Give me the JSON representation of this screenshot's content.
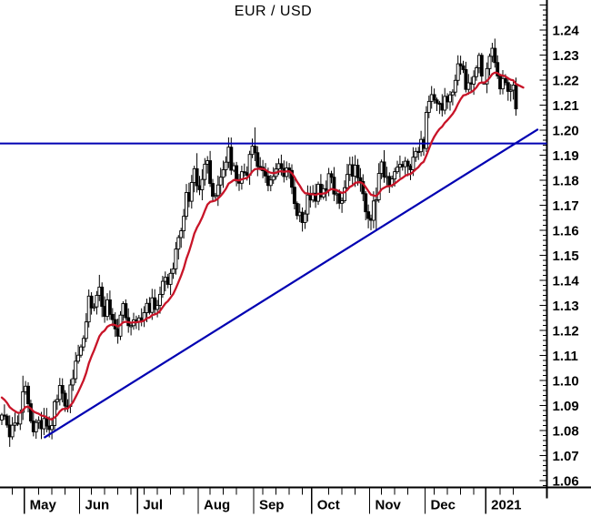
{
  "title": "EUR / USD",
  "chart_data": {
    "type": "candlestick",
    "title": "EUR / USD",
    "legend_position": "none",
    "grid": false,
    "x_axis": {
      "labels": [
        "May",
        "Jun",
        "Jul",
        "Aug",
        "Sep",
        "Oct",
        "Nov",
        "Dec",
        "2021"
      ],
      "month_start_bars": [
        9,
        30,
        52,
        75,
        96,
        118,
        140,
        161,
        184
      ],
      "minor_tick_every_bars": 5
    },
    "y_axis": {
      "labels": [
        "1.24",
        "1.23",
        "1.22",
        "1.21",
        "1.20",
        "1.19",
        "1.18",
        "1.17",
        "1.16",
        "1.15",
        "1.14",
        "1.13",
        "1.12",
        "1.11",
        "1.10",
        "1.09",
        "1.08",
        "1.07",
        "1.06"
      ],
      "major_step": 0.01,
      "minor_step": 0.002,
      "range_top": 1.252,
      "range_bottom": 1.057,
      "side": "right"
    },
    "closes": [
      1.0862,
      1.0858,
      1.0822,
      1.0775,
      1.0821,
      1.083,
      1.0826,
      1.0873,
      1.0955,
      1.0977,
      1.0907,
      1.0838,
      1.0795,
      1.0832,
      1.084,
      1.0807,
      1.0848,
      1.0818,
      1.0804,
      1.082,
      1.0915,
      1.0924,
      1.098,
      1.0949,
      1.0898,
      1.0896,
      1.0982,
      1.1007,
      1.1077,
      1.1101,
      1.1134,
      1.1168,
      1.1234,
      1.1337,
      1.129,
      1.1294,
      1.134,
      1.1373,
      1.1296,
      1.1256,
      1.1322,
      1.1264,
      1.1243,
      1.1206,
      1.1177,
      1.1261,
      1.1307,
      1.1251,
      1.1219,
      1.1219,
      1.1242,
      1.1234,
      1.125,
      1.124,
      1.1271,
      1.1308,
      1.1272,
      1.133,
      1.1284,
      1.13,
      1.1344,
      1.1396,
      1.1412,
      1.1384,
      1.1428,
      1.1446,
      1.1525,
      1.1571,
      1.1598,
      1.1656,
      1.1751,
      1.1716,
      1.1791,
      1.1846,
      1.1778,
      1.1762,
      1.1803,
      1.1864,
      1.1878,
      1.1787,
      1.1736,
      1.1739,
      1.1781,
      1.1812,
      1.1842,
      1.1872,
      1.1932,
      1.184,
      1.1858,
      1.1797,
      1.1788,
      1.1834,
      1.183,
      1.182,
      1.1903,
      1.1936,
      1.191,
      1.1855,
      1.1852,
      1.1838,
      1.1817,
      1.1779,
      1.1801,
      1.1815,
      1.1845,
      1.1866,
      1.1847,
      1.1815,
      1.1849,
      1.1839,
      1.1772,
      1.1707,
      1.1659,
      1.1672,
      1.1631,
      1.1665,
      1.1741,
      1.1721,
      1.1748,
      1.1716,
      1.1784,
      1.1733,
      1.1766,
      1.176,
      1.1826,
      1.1812,
      1.1745,
      1.1746,
      1.1708,
      1.1718,
      1.177,
      1.1823,
      1.1862,
      1.1816,
      1.186,
      1.181,
      1.1795,
      1.1746,
      1.1674,
      1.1647,
      1.164,
      1.1717,
      1.1722,
      1.1827,
      1.1873,
      1.1813,
      1.1815,
      1.1779,
      1.1805,
      1.1834,
      1.1852,
      1.1863,
      1.1854,
      1.1876,
      1.1857,
      1.1842,
      1.1892,
      1.1915,
      1.1914,
      1.1963,
      1.1927,
      1.2071,
      1.2115,
      1.2142,
      1.2121,
      1.2108,
      1.2106,
      1.208,
      1.2135,
      1.2113,
      1.2141,
      1.2152,
      1.2199,
      1.2265,
      1.2257,
      1.2242,
      1.2163,
      1.2189,
      1.2184,
      1.2214,
      1.2249,
      1.2299,
      1.2216,
      1.2185,
      1.2246,
      1.2295,
      1.2327,
      1.227,
      1.2217,
      1.2165,
      1.2206,
      1.219,
      1.2155,
      1.216,
      1.218,
      1.2085
    ],
    "bar_overrides": {
      "8": {
        "high": 1.1019
      },
      "13": {
        "low": 1.0767
      },
      "18": {
        "low": 1.0775
      },
      "37": {
        "high": 1.1422
      },
      "74": {
        "high": 1.1908
      },
      "86": {
        "high": 1.1966
      },
      "96": {
        "high": 1.2011
      },
      "114": {
        "low": 1.1612
      },
      "139": {
        "low": 1.164
      },
      "142": {
        "high": 1.1771,
        "low": 1.1603
      },
      "145": {
        "high": 1.192
      },
      "186": {
        "high": 1.2349
      },
      "195": {
        "low": 1.208
      }
    },
    "flat_bars": [
      183
    ],
    "moving_average": {
      "type": "EMA",
      "period": 15,
      "color": "#c81428"
    },
    "resistance_line": {
      "price": 1.1947,
      "color": "#0000b2"
    },
    "trend_line": {
      "from": {
        "bar": 16,
        "price": 1.0771
      },
      "to": {
        "bar": 203.4,
        "price": 1.2004
      },
      "color": "#0000b2"
    },
    "colors": {
      "background": "#ffffff",
      "axis": "#000000",
      "text": "#000000",
      "candle_up_fill": "#ffffff",
      "candle_down_fill": "#000000",
      "candle_stroke": "#000000"
    }
  }
}
